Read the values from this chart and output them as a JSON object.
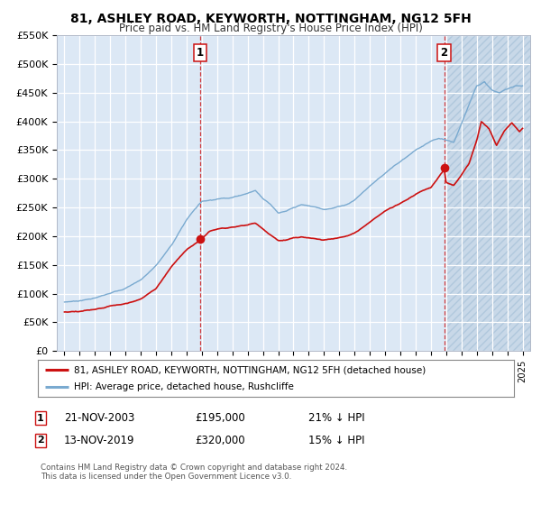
{
  "title": "81, ASHLEY ROAD, KEYWORTH, NOTTINGHAM, NG12 5FH",
  "subtitle": "Price paid vs. HM Land Registry's House Price Index (HPI)",
  "ylim": [
    0,
    550000
  ],
  "yticks": [
    0,
    50000,
    100000,
    150000,
    200000,
    250000,
    300000,
    350000,
    400000,
    450000,
    500000,
    550000
  ],
  "ytick_labels": [
    "£0",
    "£50K",
    "£100K",
    "£150K",
    "£200K",
    "£250K",
    "£300K",
    "£350K",
    "£400K",
    "£450K",
    "£500K",
    "£550K"
  ],
  "hpi_color": "#7aaad0",
  "price_color": "#cc1111",
  "marker_color": "#cc1111",
  "plot_bg_color": "#dce8f5",
  "grid_color": "#ffffff",
  "hatch_color": "#c8d8e8",
  "marker1_x": 2003.89,
  "marker1_y": 195000,
  "marker2_x": 2019.87,
  "marker2_y": 320000,
  "vline1_x": 2003.89,
  "vline2_x": 2019.87,
  "legend_label_price": "81, ASHLEY ROAD, KEYWORTH, NOTTINGHAM, NG12 5FH (detached house)",
  "legend_label_hpi": "HPI: Average price, detached house, Rushcliffe",
  "note1_date": "21-NOV-2003",
  "note1_price": "£195,000",
  "note1_pct": "21% ↓ HPI",
  "note2_date": "13-NOV-2019",
  "note2_price": "£320,000",
  "note2_pct": "15% ↓ HPI",
  "footer": "Contains HM Land Registry data © Crown copyright and database right 2024.\nThis data is licensed under the Open Government Licence v3.0.",
  "xlim_start": 1994.5,
  "xlim_end": 2025.5,
  "hatch_start": 2020.0
}
